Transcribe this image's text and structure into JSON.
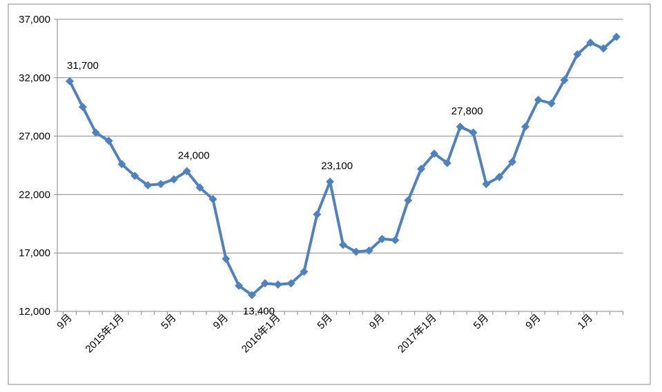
{
  "chart_data": {
    "type": "line",
    "title": "",
    "xlabel": "",
    "ylabel": "",
    "ylim": [
      12000,
      37000
    ],
    "yticks": [
      "12,000",
      "17,000",
      "22,000",
      "27,000",
      "32,000",
      "37,000"
    ],
    "grid": "horizontal",
    "series": [
      {
        "color": "#4f81bd",
        "values": [
          31700,
          29500,
          27300,
          26600,
          24600,
          23600,
          22800,
          22900,
          23300,
          24000,
          22600,
          21600,
          16500,
          14200,
          13400,
          14400,
          14300,
          14400,
          15400,
          20300,
          23100,
          17700,
          17100,
          17200,
          18200,
          18100,
          21500,
          24200,
          25500,
          24700,
          27800,
          27300,
          22900,
          23500,
          24800,
          27800,
          30100,
          29800,
          31800,
          34000,
          35000,
          34500,
          35500
        ]
      }
    ],
    "x_tick_labels": [
      {
        "index": 0,
        "label": "9月"
      },
      {
        "index": 4,
        "label": "2015年1月"
      },
      {
        "index": 8,
        "label": "5月"
      },
      {
        "index": 12,
        "label": "9月"
      },
      {
        "index": 16,
        "label": "2016年1月"
      },
      {
        "index": 20,
        "label": "5月"
      },
      {
        "index": 24,
        "label": "9月"
      },
      {
        "index": 28,
        "label": "2017年1月"
      },
      {
        "index": 32,
        "label": "5月"
      },
      {
        "index": 36,
        "label": "9月"
      },
      {
        "index": 40,
        "label": "1月"
      }
    ],
    "annotations": [
      {
        "index": 0,
        "text": "31,700",
        "pos": "above"
      },
      {
        "index": 9,
        "text": "24,000",
        "pos": "above"
      },
      {
        "index": 14,
        "text": "13,400",
        "pos": "below"
      },
      {
        "index": 20,
        "text": "23,100",
        "pos": "above"
      },
      {
        "index": 30,
        "text": "27,800",
        "pos": "above"
      }
    ]
  }
}
